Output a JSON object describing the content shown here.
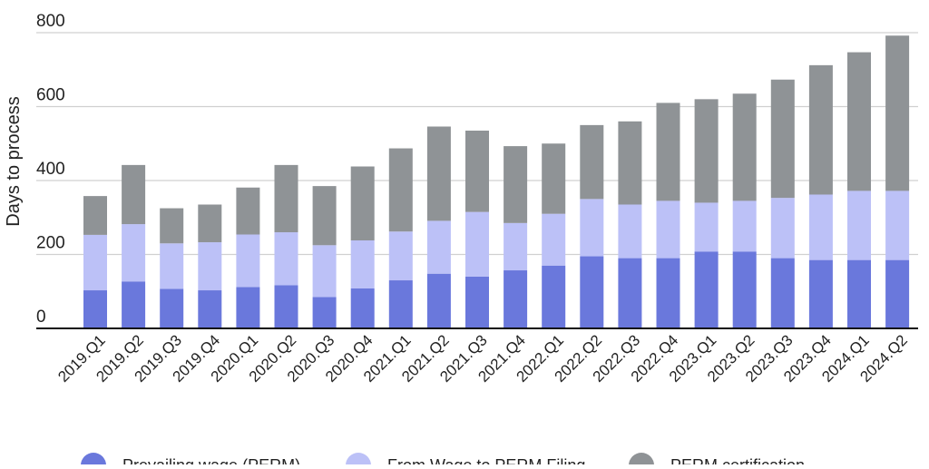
{
  "chart_data": {
    "type": "bar",
    "stacked": true,
    "title": "",
    "xlabel": "",
    "ylabel": "Days to process",
    "ylim": [
      0,
      800
    ],
    "yticks": [
      0,
      200,
      400,
      600,
      800
    ],
    "grid": true,
    "legend_position": "bottom",
    "categories": [
      "2019.Q1",
      "2019.Q2",
      "2019.Q3",
      "2019.Q4",
      "2020.Q1",
      "2020.Q2",
      "2020.Q3",
      "2020.Q4",
      "2021.Q1",
      "2021.Q2",
      "2021.Q3",
      "2021.Q4",
      "2022.Q1",
      "2022.Q2",
      "2022.Q3",
      "2022.Q4",
      "2023.Q1",
      "2023.Q2",
      "2023.Q3",
      "2023.Q4",
      "2024.Q1",
      "2024.Q2"
    ],
    "series": [
      {
        "name": "Prevailing wage (PERM)",
        "color": "#6a78dc",
        "values": [
          103,
          127,
          107,
          103,
          112,
          117,
          85,
          108,
          130,
          148,
          140,
          157,
          170,
          195,
          190,
          190,
          208,
          208,
          190,
          185,
          185,
          185
        ]
      },
      {
        "name": "From Wage to PERM Filing",
        "color": "#bcc1f7",
        "values": [
          150,
          155,
          123,
          130,
          142,
          143,
          140,
          130,
          132,
          143,
          175,
          128,
          140,
          155,
          145,
          155,
          132,
          137,
          163,
          177,
          187,
          187
        ]
      },
      {
        "name": "PERM certification",
        "color": "#8f9396",
        "values": [
          105,
          160,
          95,
          102,
          127,
          182,
          160,
          200,
          225,
          255,
          220,
          208,
          190,
          200,
          225,
          265,
          280,
          290,
          320,
          350,
          375,
          420
        ]
      }
    ]
  }
}
